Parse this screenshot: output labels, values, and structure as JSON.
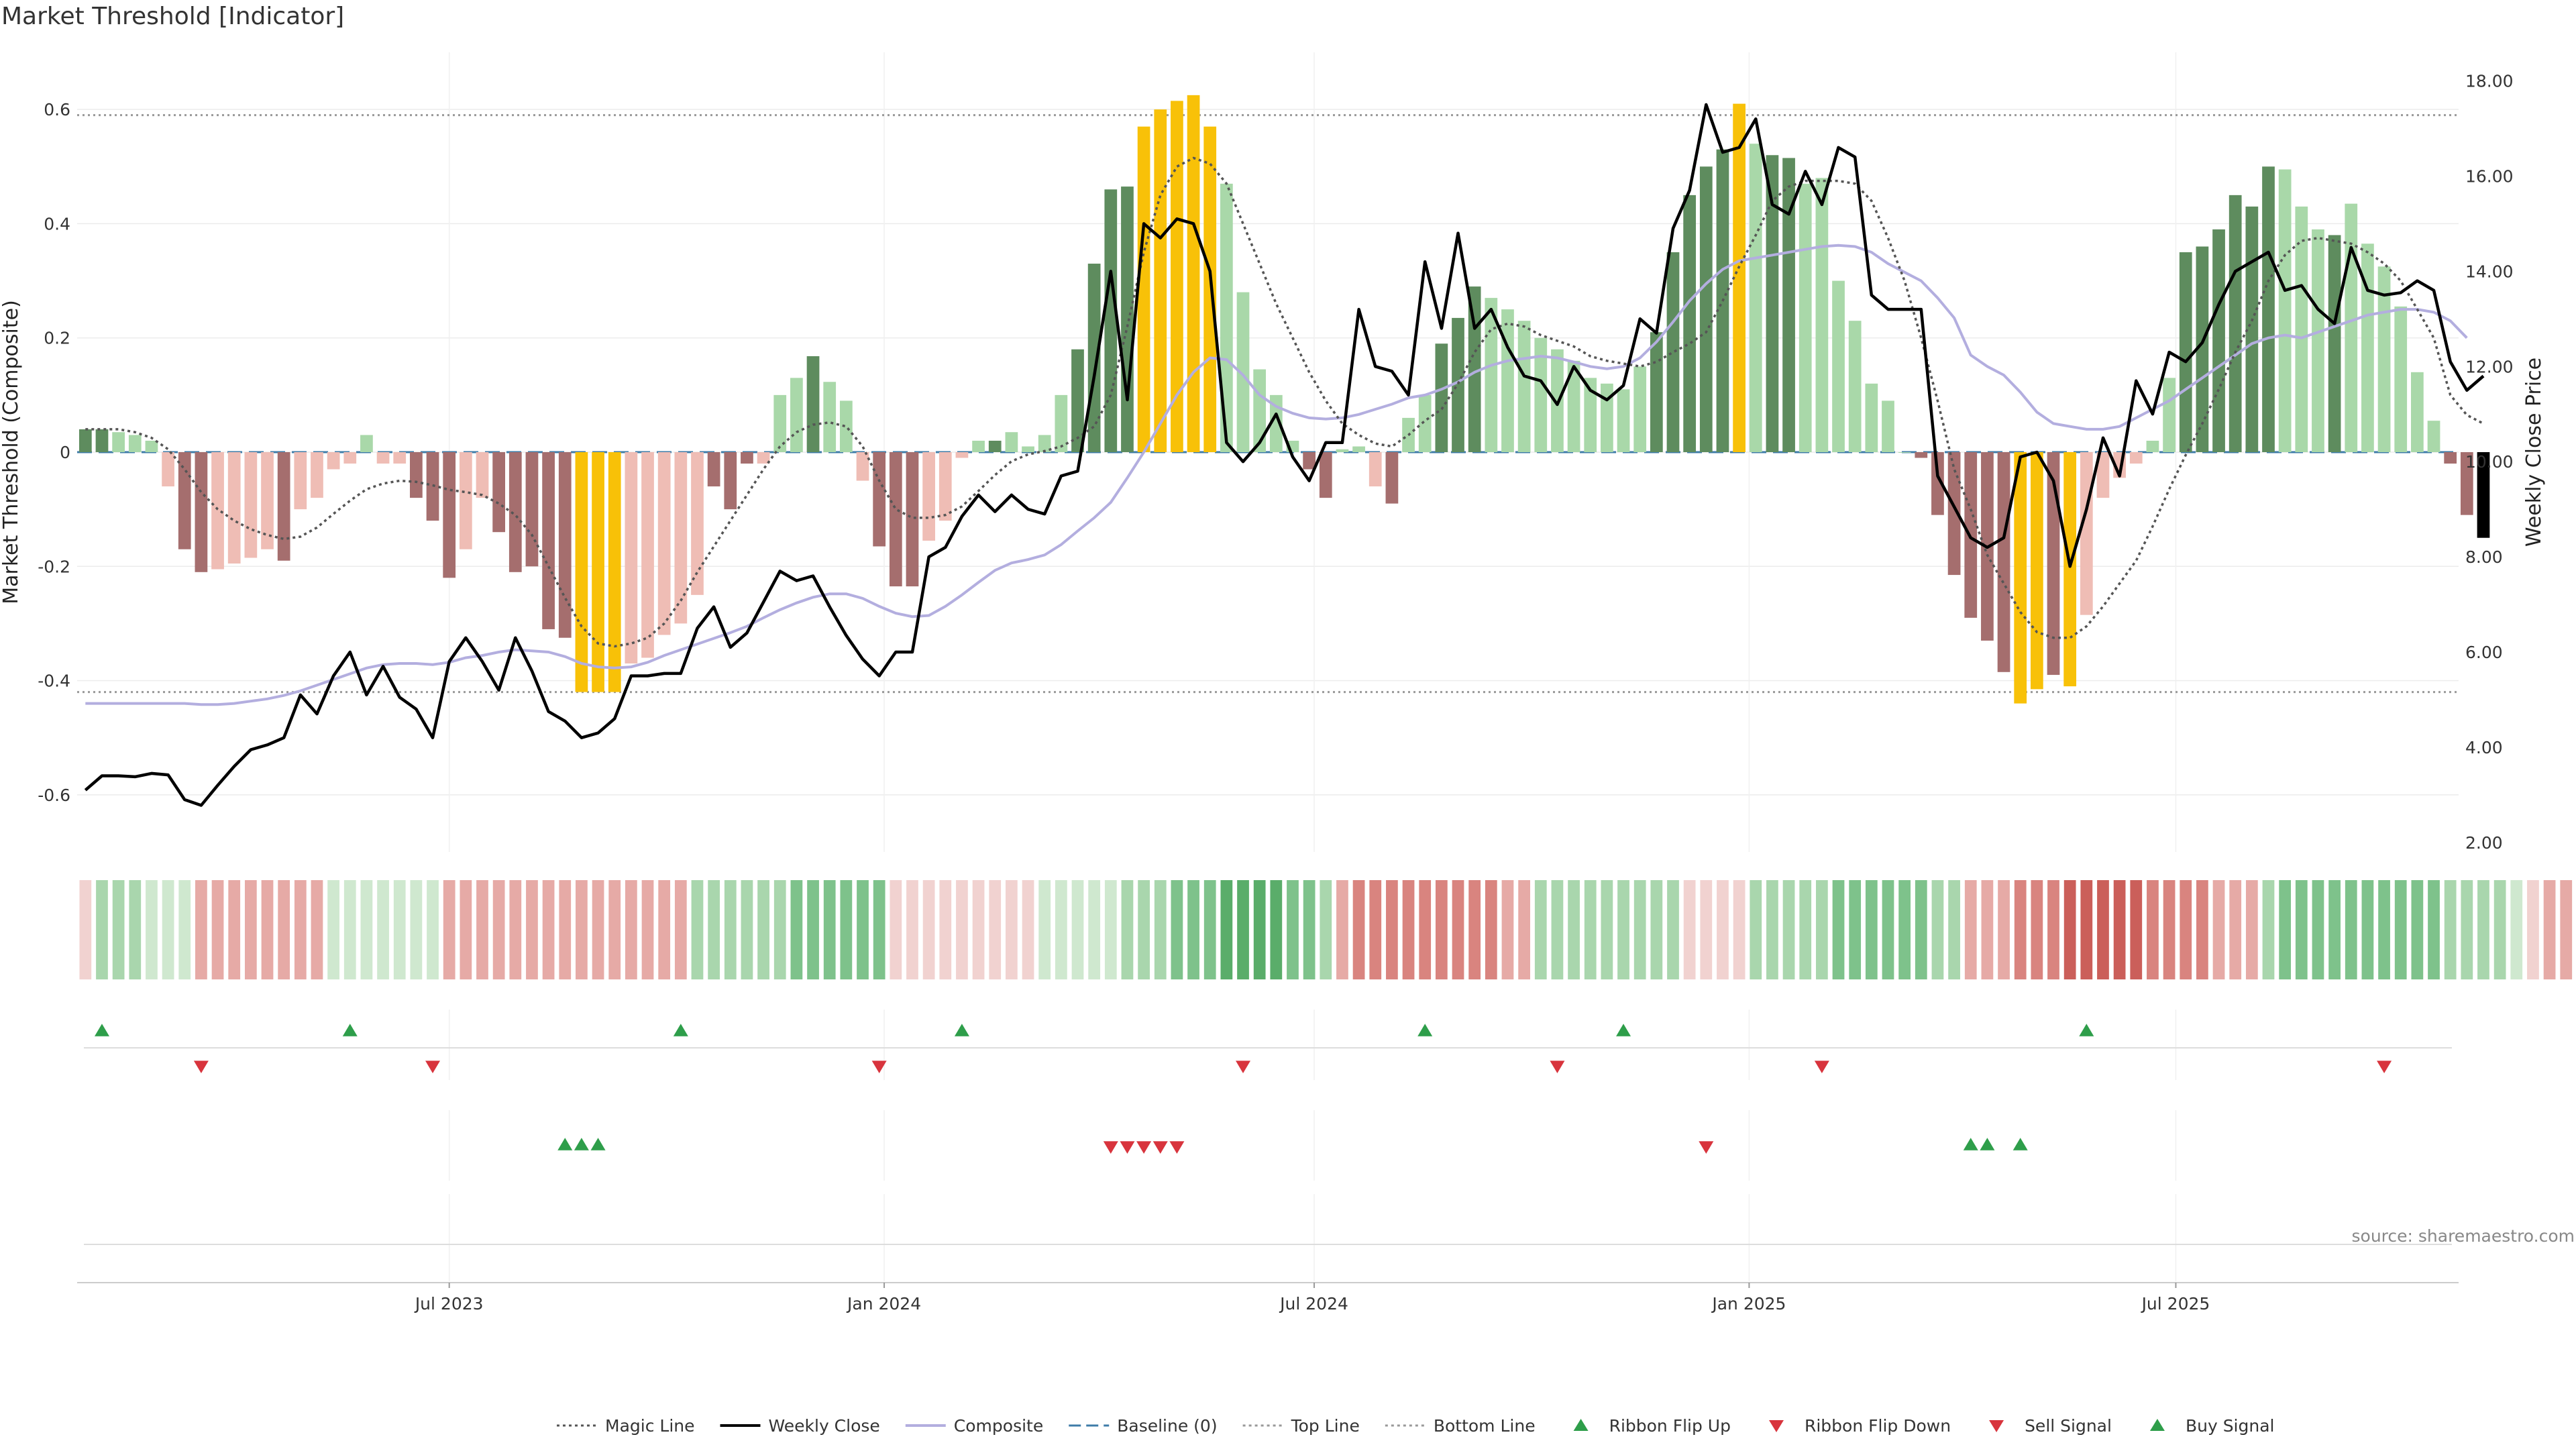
{
  "title": "Market Threshold [Indicator]",
  "source": "source: sharemaestro.com",
  "colors": {
    "magic_line": "#555555",
    "weekly_close": "#000000",
    "composite": "#b3aedf",
    "baseline": "#3f7ca8",
    "top_line": "#999999",
    "bottom_line": "#999999",
    "extreme_bar": "#f8c108",
    "pos_strong": "#5e8c5e",
    "pos_weak": "#a9d8a9",
    "neg_strong": "#a56e6e",
    "neg_weak": "#efbdb5",
    "signal_up": "#2e9e4a",
    "signal_down": "#d8343d",
    "ribbon_pos": [
      "#cfe8cf",
      "#a9d6ad",
      "#7ec28b",
      "#5aad6a"
    ],
    "ribbon_neg": [
      "#f1d2d0",
      "#e6aaa6",
      "#d9847f",
      "#cb5f5a"
    ]
  },
  "chart_data": {
    "type": "bar",
    "title": "Market Threshold [Indicator]",
    "ylabel": "Market Threshold (Composite)",
    "y2label": "Weekly Close Price",
    "ylim": [
      -0.7,
      0.7
    ],
    "y2lim": [
      1.8,
      18.6
    ],
    "yticks": [
      "-0.6",
      "-0.4",
      "-0.2",
      "0",
      "0.2",
      "0.4",
      "0.6"
    ],
    "y2ticks": [
      "2.00",
      "4.00",
      "6.00",
      "8.00",
      "10.00",
      "12.00",
      "14.00",
      "16.00",
      "18.00"
    ],
    "xlim": [
      -0.5,
      143.5
    ],
    "x_tick_labels": [
      {
        "label": "Jul 2023",
        "x": 22
      },
      {
        "label": "Jan 2024",
        "x": 48.3
      },
      {
        "label": "Jul 2024",
        "x": 74.3
      },
      {
        "label": "Jan 2025",
        "x": 100.6
      },
      {
        "label": "Jul 2025",
        "x": 126.4
      }
    ],
    "top_line": 0.59,
    "bottom_line": -0.42,
    "baseline": 0,
    "grid": true,
    "legend_position": "bottom-center",
    "composite": [
      0.04,
      0.04,
      0.035,
      0.03,
      0.02,
      -0.06,
      -0.17,
      -0.21,
      -0.205,
      -0.195,
      -0.185,
      -0.17,
      -0.19,
      -0.1,
      -0.08,
      -0.03,
      -0.02,
      0.03,
      -0.02,
      -0.02,
      -0.08,
      -0.12,
      -0.22,
      -0.17,
      -0.08,
      -0.14,
      -0.21,
      -0.2,
      -0.31,
      -0.325,
      -0.42,
      -0.42,
      -0.42,
      -0.37,
      -0.36,
      -0.32,
      -0.3,
      -0.25,
      -0.06,
      -0.1,
      -0.02,
      -0.02,
      0.1,
      0.13,
      0.168,
      0.123,
      0.09,
      -0.05,
      -0.165,
      -0.235,
      -0.235,
      -0.155,
      -0.12,
      -0.01,
      0.02,
      0.02,
      0.035,
      0.01,
      0.03,
      0.1,
      0.18,
      0.33,
      0.46,
      0.465,
      0.57,
      0.6,
      0.615,
      0.625,
      0.57,
      0.47,
      0.28,
      0.145,
      0.1,
      0.02,
      -0.03,
      -0.08,
      0.005,
      0.01,
      -0.06,
      -0.09,
      0.06,
      0.1,
      0.19,
      0.235,
      0.29,
      0.27,
      0.25,
      0.23,
      0.2,
      0.18,
      0.16,
      0.13,
      0.12,
      0.11,
      0.15,
      0.21,
      0.35,
      0.45,
      0.5,
      0.53,
      0.61,
      0.54,
      0.52,
      0.515,
      0.47,
      0.48,
      0.3,
      0.23,
      0.12,
      0.09,
      0,
      -0.01,
      -0.11,
      -0.215,
      -0.29,
      -0.33,
      -0.385,
      -0.44,
      -0.415,
      -0.39,
      -0.41,
      -0.285,
      -0.08,
      -0.045,
      -0.02,
      0.02,
      0.13,
      0.35,
      0.36,
      0.39,
      0.45,
      0.43,
      0.5,
      0.495,
      0.43,
      0.39,
      0.38,
      0.435,
      0.365,
      0.325,
      0.255,
      0.14,
      0.055,
      -0.02,
      -0.11,
      -0.15
    ],
    "bar_category": [
      "P",
      "P",
      "W",
      "W",
      "W",
      "W",
      "N",
      "N",
      "W",
      "W",
      "W",
      "W",
      "N",
      "W",
      "W",
      "W",
      "W",
      "W",
      "W",
      "W",
      "N",
      "N",
      "N",
      "W",
      "W",
      "N",
      "N",
      "N",
      "N",
      "N",
      "E",
      "E",
      "E",
      "W",
      "W",
      "W",
      "W",
      "W",
      "N",
      "N",
      "N",
      "W",
      "W",
      "W",
      "P",
      "W",
      "W",
      "W",
      "N",
      "N",
      "N",
      "W",
      "W",
      "W",
      "W",
      "P",
      "W",
      "W",
      "W",
      "W",
      "P",
      "P",
      "P",
      "P",
      "E",
      "E",
      "E",
      "E",
      "E",
      "W",
      "W",
      "W",
      "W",
      "W",
      "N",
      "N",
      "W",
      "W",
      "W",
      "N",
      "W",
      "W",
      "P",
      "P",
      "P",
      "W",
      "W",
      "W",
      "W",
      "W",
      "W",
      "W",
      "W",
      "W",
      "W",
      "P",
      "P",
      "P",
      "P",
      "P",
      "E",
      "W",
      "P",
      "P",
      "W",
      "W",
      "W",
      "W",
      "W",
      "W",
      "W",
      "N",
      "N",
      "N",
      "N",
      "N",
      "N",
      "E",
      "E",
      "N",
      "E",
      "W",
      "W",
      "W",
      "W",
      "W",
      "W",
      "P",
      "P",
      "P",
      "P",
      "P",
      "P",
      "W",
      "W",
      "W",
      "P",
      "W",
      "W",
      "W",
      "W",
      "W",
      "W",
      "N",
      "N"
    ],
    "weekly_close": [
      3.1,
      3.4,
      3.4,
      3.38,
      3.45,
      3.42,
      2.9,
      2.78,
      3.2,
      3.6,
      3.95,
      4.05,
      4.2,
      5.1,
      4.7,
      5.5,
      6.0,
      5.1,
      5.7,
      5.05,
      4.8,
      4.2,
      5.8,
      6.3,
      5.8,
      5.2,
      6.3,
      5.6,
      4.75,
      4.55,
      4.2,
      4.3,
      4.6,
      5.5,
      5.5,
      5.55,
      5.55,
      6.5,
      6.95,
      6.1,
      6.4,
      7.05,
      7.7,
      7.5,
      7.6,
      6.95,
      6.35,
      5.85,
      5.5,
      6.0,
      6.0,
      8.0,
      8.2,
      8.85,
      9.3,
      8.95,
      9.3,
      9.0,
      8.9,
      9.7,
      9.8,
      11.8,
      14.0,
      11.3,
      15.0,
      14.7,
      15.1,
      15.0,
      14.0,
      10.4,
      10.0,
      10.4,
      11.0,
      10.1,
      9.6,
      10.4,
      10.4,
      13.2,
      12.0,
      11.9,
      11.4,
      14.2,
      12.8,
      14.8,
      12.8,
      13.2,
      12.4,
      11.8,
      11.7,
      11.2,
      12.0,
      11.5,
      11.3,
      11.6,
      13.0,
      12.7,
      14.9,
      15.7,
      17.5,
      16.5,
      16.6,
      17.2,
      15.4,
      15.2,
      16.1,
      15.4,
      16.6,
      16.4,
      13.5,
      13.2,
      13.2,
      13.2,
      9.7,
      9.05,
      8.4,
      8.2,
      8.4,
      10.1,
      10.2,
      9.6,
      7.8,
      9.0,
      10.5,
      9.7,
      11.7,
      11.0,
      12.3,
      12.1,
      12.5,
      13.3,
      14.0,
      14.2,
      14.4,
      13.6,
      13.7,
      13.2,
      12.9,
      14.5,
      13.6,
      13.5,
      13.55,
      13.8,
      13.6,
      12.1,
      11.5,
      11.8
    ],
    "composite_line": [
      -0.44,
      -0.44,
      -0.44,
      -0.44,
      -0.44,
      -0.44,
      -0.44,
      -0.442,
      -0.442,
      -0.44,
      -0.436,
      -0.432,
      -0.426,
      -0.418,
      -0.408,
      -0.398,
      -0.388,
      -0.378,
      -0.372,
      -0.37,
      -0.37,
      -0.372,
      -0.368,
      -0.36,
      -0.356,
      -0.35,
      -0.346,
      -0.348,
      -0.35,
      -0.358,
      -0.37,
      -0.376,
      -0.378,
      -0.376,
      -0.368,
      -0.356,
      -0.346,
      -0.336,
      -0.326,
      -0.316,
      -0.305,
      -0.29,
      -0.276,
      -0.264,
      -0.254,
      -0.248,
      -0.248,
      -0.256,
      -0.27,
      -0.282,
      -0.288,
      -0.286,
      -0.27,
      -0.25,
      -0.228,
      -0.207,
      -0.194,
      -0.188,
      -0.18,
      -0.162,
      -0.138,
      -0.115,
      -0.088,
      -0.045,
      0,
      0.05,
      0.1,
      0.14,
      0.165,
      0.162,
      0.135,
      0.1,
      0.08,
      0.068,
      0.06,
      0.058,
      0.06,
      0.066,
      0.075,
      0.084,
      0.095,
      0.1,
      0.11,
      0.123,
      0.14,
      0.152,
      0.16,
      0.164,
      0.168,
      0.165,
      0.158,
      0.15,
      0.146,
      0.15,
      0.165,
      0.193,
      0.228,
      0.265,
      0.295,
      0.32,
      0.335,
      0.34,
      0.345,
      0.35,
      0.355,
      0.36,
      0.362,
      0.36,
      0.35,
      0.33,
      0.315,
      0.3,
      0.27,
      0.235,
      0.17,
      0.15,
      0.135,
      0.105,
      0.07,
      0.05,
      0.045,
      0.04,
      0.04,
      0.045,
      0.06,
      0.075,
      0.09,
      0.11,
      0.13,
      0.15,
      0.17,
      0.19,
      0.2,
      0.205,
      0.2,
      0.21,
      0.22,
      0.23,
      0.24,
      0.245,
      0.25,
      0.25,
      0.245,
      0.23,
      0.2
    ],
    "magic_line": [
      0.04,
      0.04,
      0.04,
      0.035,
      0.025,
      0.005,
      -0.03,
      -0.07,
      -0.1,
      -0.12,
      -0.135,
      -0.145,
      -0.152,
      -0.148,
      -0.132,
      -0.108,
      -0.085,
      -0.065,
      -0.055,
      -0.05,
      -0.052,
      -0.058,
      -0.066,
      -0.07,
      -0.075,
      -0.09,
      -0.11,
      -0.145,
      -0.2,
      -0.255,
      -0.305,
      -0.335,
      -0.34,
      -0.335,
      -0.325,
      -0.3,
      -0.26,
      -0.21,
      -0.165,
      -0.12,
      -0.075,
      -0.03,
      0.01,
      0.035,
      0.048,
      0.052,
      0.045,
      0.01,
      -0.05,
      -0.1,
      -0.115,
      -0.115,
      -0.11,
      -0.095,
      -0.068,
      -0.04,
      -0.016,
      -0.004,
      0.002,
      0.01,
      0.025,
      0.045,
      0.1,
      0.22,
      0.35,
      0.45,
      0.5,
      0.515,
      0.505,
      0.47,
      0.4,
      0.33,
      0.26,
      0.2,
      0.14,
      0.09,
      0.05,
      0.03,
      0.015,
      0.01,
      0.03,
      0.055,
      0.075,
      0.12,
      0.175,
      0.215,
      0.225,
      0.22,
      0.205,
      0.195,
      0.185,
      0.168,
      0.16,
      0.155,
      0.15,
      0.158,
      0.175,
      0.19,
      0.21,
      0.265,
      0.325,
      0.38,
      0.44,
      0.465,
      0.475,
      0.475,
      0.475,
      0.47,
      0.44,
      0.375,
      0.3,
      0.2,
      0.09,
      -0.03,
      -0.1,
      -0.18,
      -0.23,
      -0.28,
      -0.315,
      -0.325,
      -0.325,
      -0.305,
      -0.27,
      -0.23,
      -0.19,
      -0.13,
      -0.065,
      -0.005,
      0.05,
      0.11,
      0.175,
      0.23,
      0.3,
      0.345,
      0.37,
      0.375,
      0.37,
      0.365,
      0.35,
      0.33,
      0.3,
      0.25,
      0.2,
      0.1,
      0.065,
      0.05
    ],
    "ribbon_level": [
      -1,
      2,
      2,
      2,
      1,
      1,
      1,
      -2,
      -2,
      -2,
      -2,
      -2,
      -2,
      -2,
      -2,
      1,
      1,
      1,
      1,
      1,
      1,
      1,
      -2,
      -2,
      -2,
      -2,
      -2,
      -2,
      -2,
      -2,
      -2,
      -2,
      -2,
      -2,
      -2,
      -2,
      -2,
      2,
      2,
      2,
      2,
      2,
      2,
      3,
      3,
      3,
      3,
      3,
      3,
      -1,
      -1,
      -1,
      -1,
      -1,
      -1,
      -1,
      -1,
      -1,
      1,
      1,
      1,
      1,
      1,
      2,
      2,
      2,
      3,
      3,
      3,
      4,
      4,
      4,
      4,
      3,
      3,
      2,
      -2,
      -3,
      -3,
      -3,
      -3,
      -3,
      -3,
      -3,
      -3,
      -3,
      -2,
      -2,
      2,
      2,
      2,
      2,
      2,
      2,
      2,
      2,
      2,
      -1,
      -1,
      -1,
      -1,
      2,
      2,
      2,
      2,
      2,
      3,
      3,
      3,
      3,
      3,
      3,
      2,
      2,
      -2,
      -2,
      -2,
      -3,
      -3,
      -3,
      -4,
      -4,
      -4,
      -4,
      -4,
      -3,
      -3,
      -3,
      -3,
      -2,
      -2,
      -2,
      2,
      3,
      3,
      3,
      3,
      3,
      3,
      3,
      3,
      3,
      3,
      2,
      2,
      2,
      2,
      1,
      -1,
      -2,
      -2,
      -2,
      -2
    ],
    "ribbon_flip_up_x": [
      1,
      16,
      36,
      53,
      81,
      93,
      121
    ],
    "ribbon_flip_down_x": [
      7,
      21,
      48,
      70,
      89,
      105,
      139
    ],
    "buy_signal_x": [
      29,
      30,
      31,
      114,
      115,
      117
    ],
    "sell_signal_x": [
      62,
      63,
      64,
      65,
      66,
      98
    ],
    "legend": [
      {
        "label": "Magic Line",
        "kind": "dotted-line",
        "color": "#555555"
      },
      {
        "label": "Weekly Close",
        "kind": "solid-line",
        "color": "#000000"
      },
      {
        "label": "Composite",
        "kind": "solid-line",
        "color": "#b3aedf"
      },
      {
        "label": "Baseline (0)",
        "kind": "dashed-line",
        "color": "#3f7ca8"
      },
      {
        "label": "Top Line",
        "kind": "dotted-line",
        "color": "#999999"
      },
      {
        "label": "Bottom Line",
        "kind": "dotted-line",
        "color": "#999999"
      },
      {
        "label": "Ribbon Flip Up",
        "kind": "triangle-up",
        "color": "#2e9e4a"
      },
      {
        "label": "Ribbon Flip Down",
        "kind": "triangle-down",
        "color": "#d8343d"
      },
      {
        "label": "Sell Signal",
        "kind": "triangle-down",
        "color": "#d8343d"
      },
      {
        "label": "Buy Signal",
        "kind": "triangle-up",
        "color": "#2e9e4a"
      }
    ]
  }
}
